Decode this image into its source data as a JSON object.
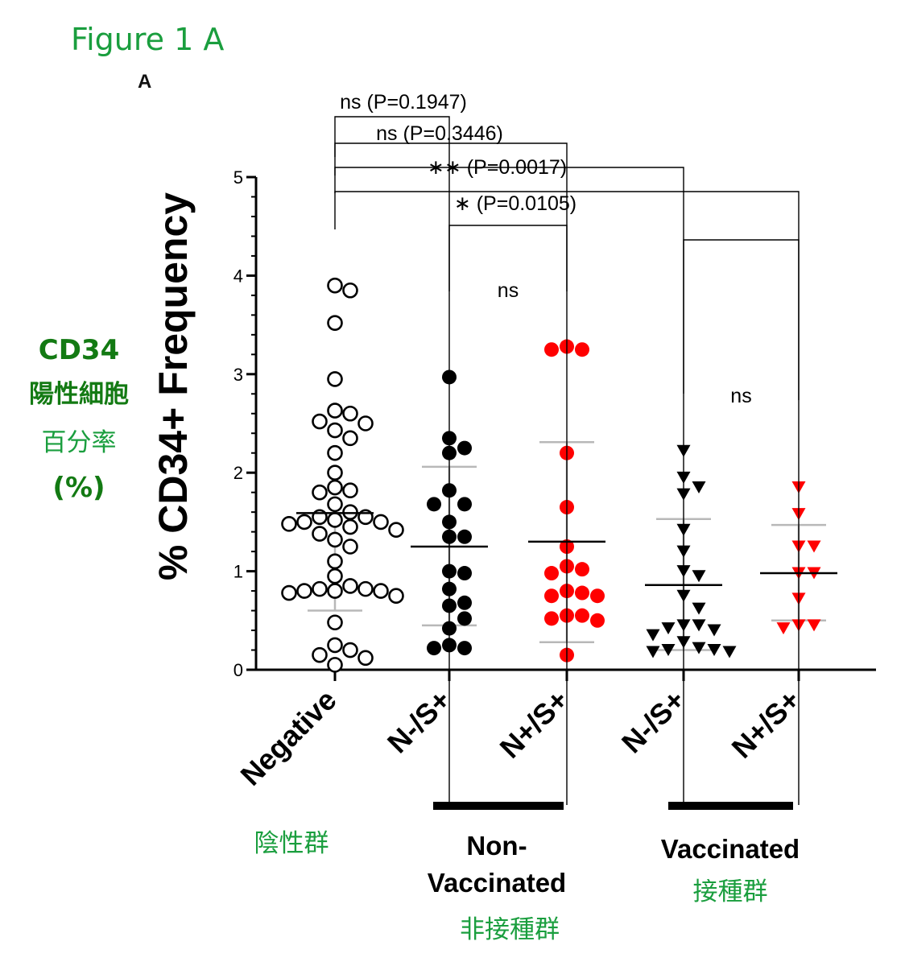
{
  "figure_title": "Figure 1 A",
  "panel_label": "A",
  "annotation": {
    "line1": "CD34",
    "line2": "陽性細胞",
    "line3": "百分率",
    "line4": "(%)"
  },
  "colors": {
    "black": "#000000",
    "red": "#ff0000",
    "green": "#1a9e3e",
    "gray": "#b8b8b8"
  },
  "groups": {
    "negative_zh": "陰性群",
    "nonvax_line1": "Non-",
    "nonvax_line2": "Vaccinated",
    "nonvax_zh": "非接種群",
    "vax": "Vaccinated",
    "vax_zh": "接種群"
  },
  "chart_data": {
    "type": "scatter",
    "ylabel": "% CD34+ Frequency",
    "ylim": [
      0,
      5
    ],
    "yticks": [
      "0",
      "1",
      "2",
      "3",
      "4",
      "5"
    ],
    "categories": [
      "Negative",
      "N-/S+",
      "N+/S+",
      "N-/S+",
      "N+/S+"
    ],
    "series": [
      {
        "name": "Negative",
        "marker": "open-circle",
        "color": "#000000",
        "mean": 1.59,
        "sd_low": 0.6,
        "sd_high": 1.59,
        "values": [
          3.9,
          3.85,
          3.52,
          2.95,
          2.63,
          2.6,
          2.52,
          2.5,
          2.43,
          2.35,
          2.2,
          2.0,
          1.85,
          1.82,
          1.8,
          1.68,
          1.6,
          1.55,
          1.55,
          1.52,
          1.5,
          1.5,
          1.48,
          1.45,
          1.42,
          1.38,
          1.32,
          1.25,
          1.1,
          0.95,
          0.85,
          0.82,
          0.82,
          0.8,
          0.8,
          0.8,
          0.78,
          0.75,
          0.48,
          0.25,
          0.2,
          0.15,
          0.12,
          0.05
        ]
      },
      {
        "name": "Non-Vaccinated N-/S+",
        "marker": "filled-circle",
        "color": "#000000",
        "mean": 1.25,
        "sd_low": 0.45,
        "sd_high": 2.06,
        "values": [
          2.97,
          2.35,
          2.25,
          2.2,
          1.82,
          1.68,
          1.68,
          1.5,
          1.35,
          1.35,
          1.0,
          0.98,
          0.82,
          0.68,
          0.65,
          0.52,
          0.42,
          0.25,
          0.22,
          0.22
        ]
      },
      {
        "name": "Non-Vaccinated N+/S+",
        "marker": "filled-circle",
        "color": "#ff0000",
        "mean": 1.3,
        "sd_low": 0.28,
        "sd_high": 2.31,
        "values": [
          3.28,
          3.25,
          3.25,
          2.2,
          1.65,
          1.25,
          1.05,
          1.02,
          0.98,
          0.8,
          0.78,
          0.75,
          0.75,
          0.55,
          0.55,
          0.52,
          0.5,
          0.15
        ]
      },
      {
        "name": "Vaccinated N-/S+",
        "marker": "filled-triangle-down",
        "color": "#000000",
        "mean": 0.86,
        "sd_low": 0.2,
        "sd_high": 1.53,
        "values": [
          2.22,
          1.95,
          1.85,
          1.78,
          1.42,
          1.2,
          1.0,
          0.95,
          0.75,
          0.62,
          0.45,
          0.45,
          0.42,
          0.4,
          0.35,
          0.28,
          0.22,
          0.2,
          0.2,
          0.18,
          0.18
        ]
      },
      {
        "name": "Vaccinated N+/S+",
        "marker": "filled-triangle-down",
        "color": "#ff0000",
        "mean": 0.98,
        "sd_low": 0.5,
        "sd_high": 1.47,
        "values": [
          1.85,
          1.58,
          1.25,
          1.25,
          0.98,
          0.98,
          0.72,
          0.45,
          0.45,
          0.42
        ]
      }
    ],
    "comparisons": [
      {
        "from": 0,
        "to": 1,
        "label": "ns (P=0.1947)"
      },
      {
        "from": 0,
        "to": 2,
        "label": "ns (P=0.3446)"
      },
      {
        "from": 0,
        "to": 3,
        "label": "∗∗ (P=0.0017)"
      },
      {
        "from": 0,
        "to": 4,
        "label": "∗ (P=0.0105)"
      },
      {
        "from": 1,
        "to": 2,
        "label": "ns"
      },
      {
        "from": 3,
        "to": 4,
        "label": "ns"
      }
    ]
  }
}
